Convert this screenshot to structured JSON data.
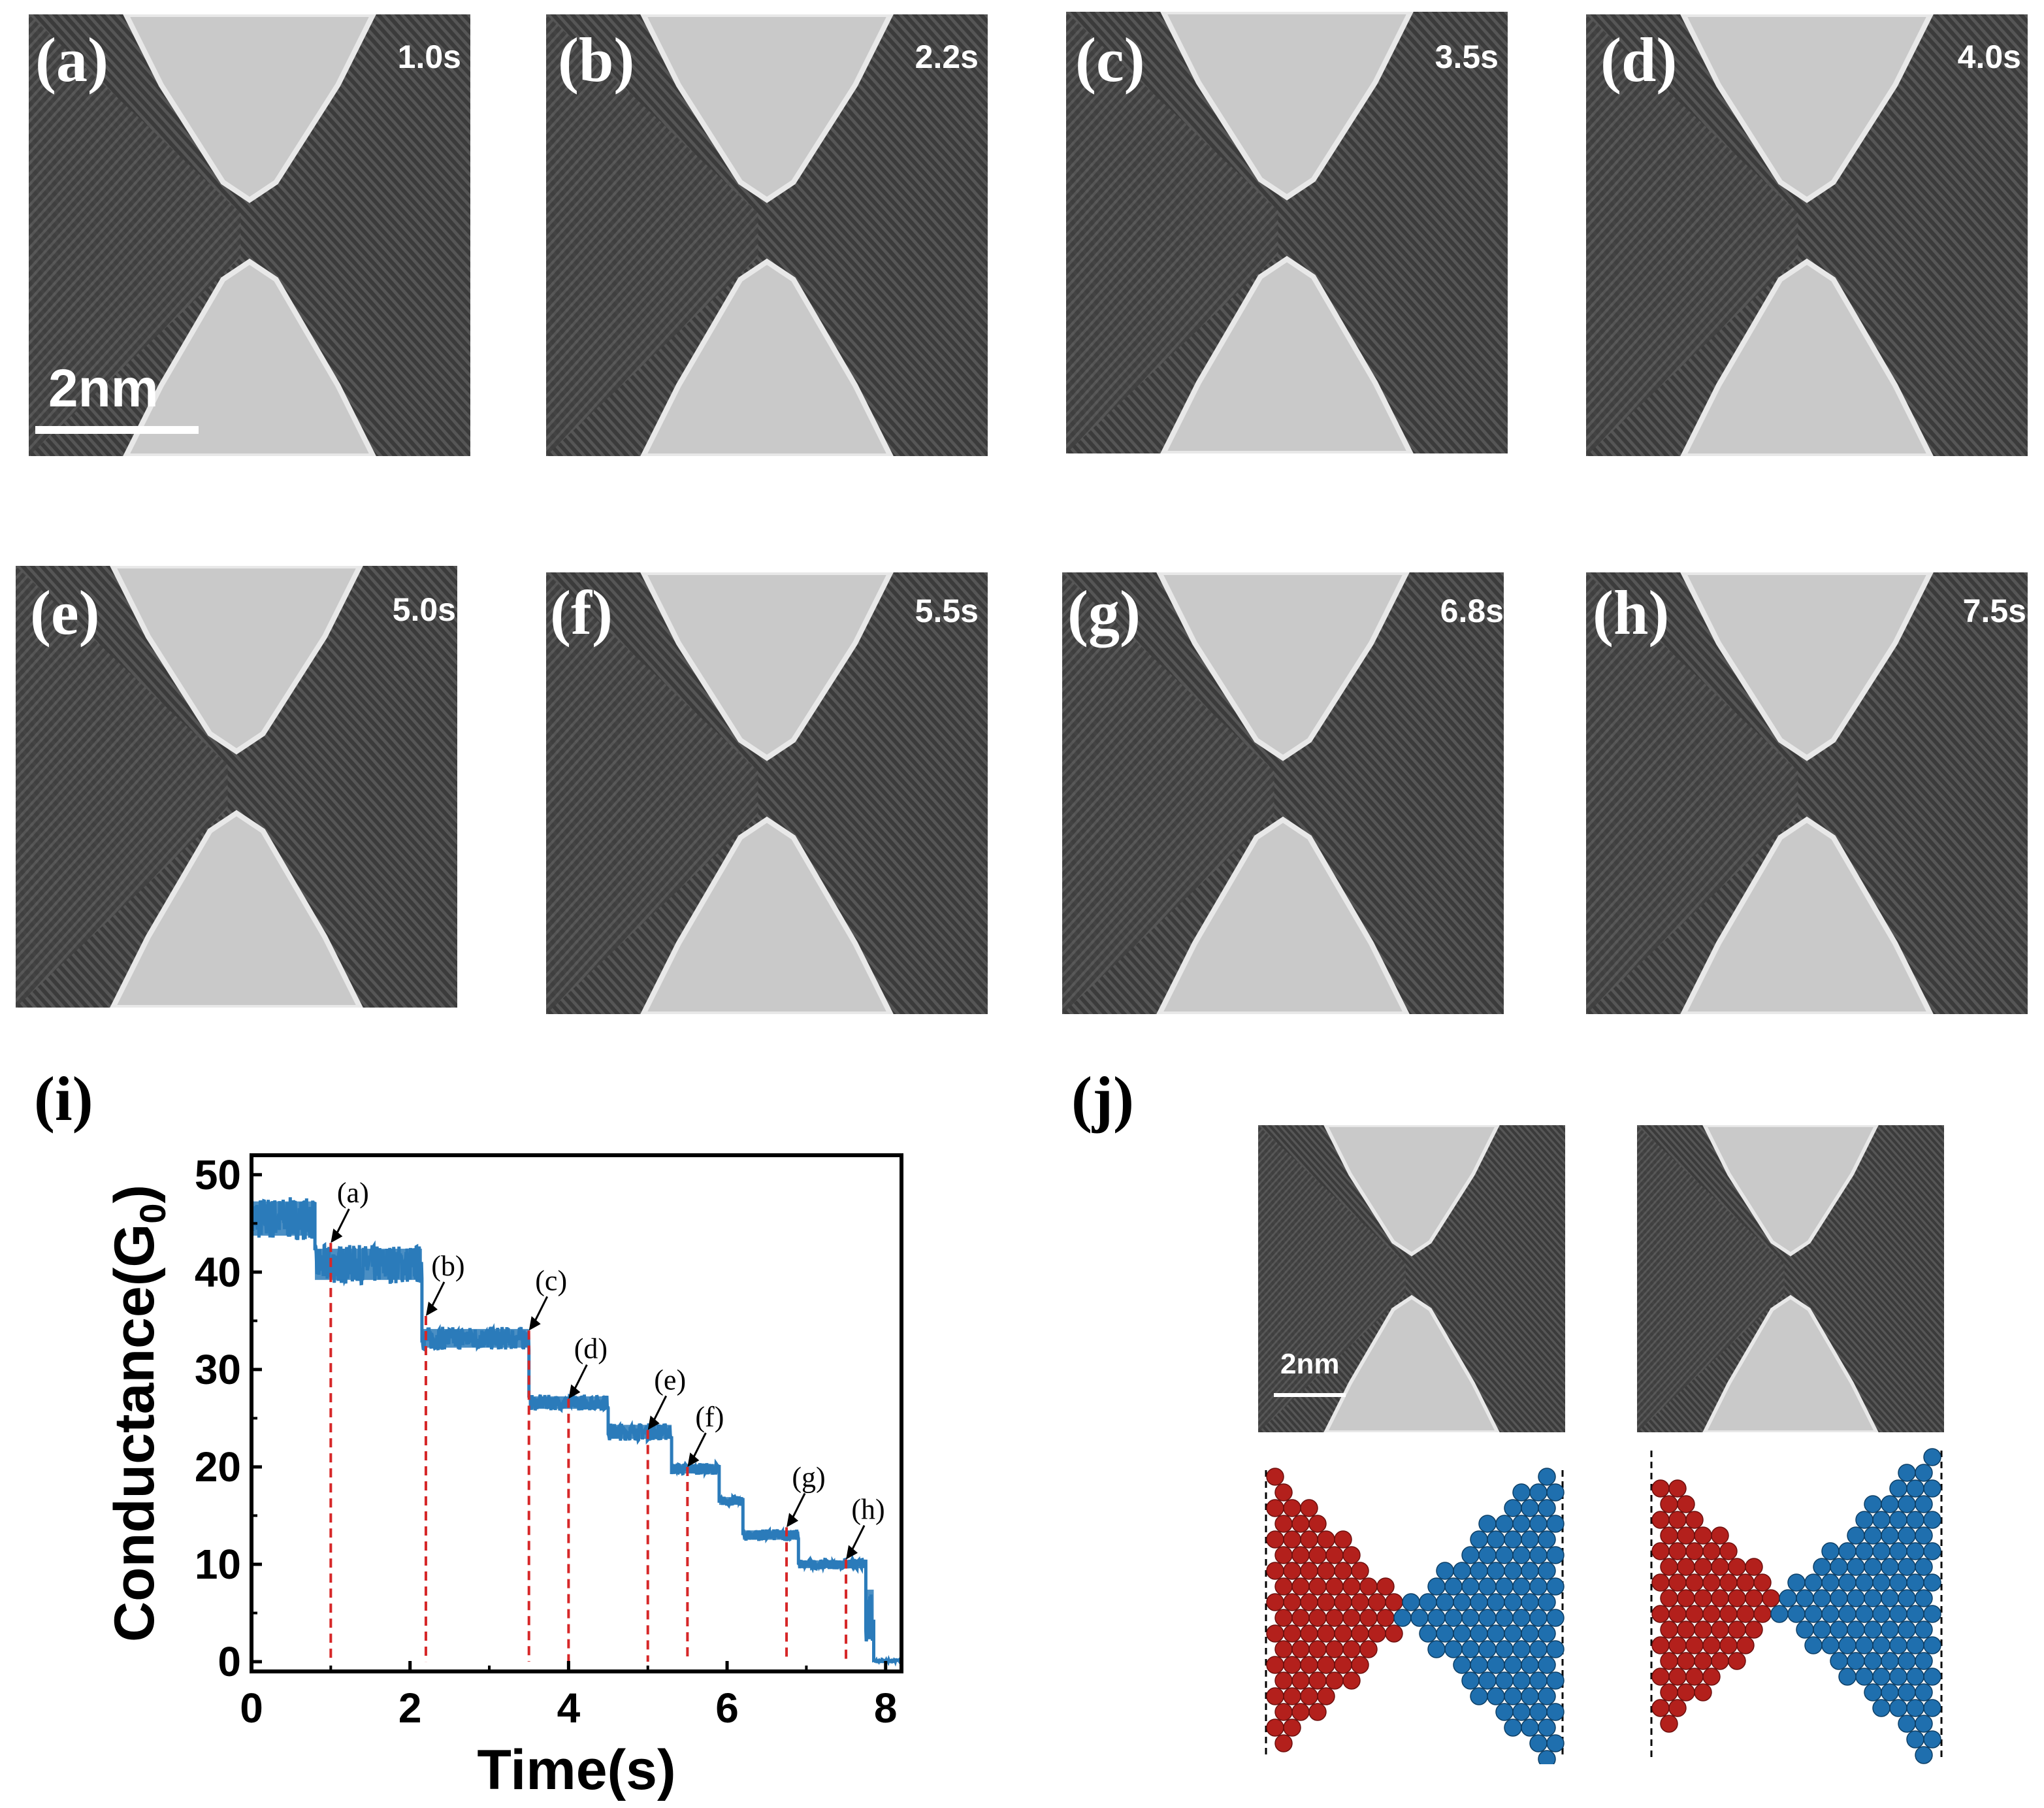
{
  "panels": [
    {
      "label": "(a)",
      "time": "1.0s"
    },
    {
      "label": "(b)",
      "time": "2.2s"
    },
    {
      "label": "(c)",
      "time": "3.5s"
    },
    {
      "label": "(d)",
      "time": "4.0s"
    },
    {
      "label": "(e)",
      "time": "5.0s"
    },
    {
      "label": "(f)",
      "time": "5.5s"
    },
    {
      "label": "(g)",
      "time": "6.8s"
    },
    {
      "label": "(h)",
      "time": "7.5s"
    }
  ],
  "scalebar_main": "2nm",
  "label_i": "(i)",
  "label_j": "(j)",
  "scalebar_j": "2nm",
  "colors": {
    "trace": "#2b7bba",
    "marker_line": "#d62728",
    "atom_red": "#b3201c",
    "atom_blue": "#1f6fae"
  },
  "chart_data": {
    "type": "line",
    "title": "",
    "xlabel": "Time(s)",
    "ylabel": "Conductance(G",
    "ylabel_sub": "0",
    "ylabel_suffix": ")",
    "xlim": [
      0,
      8.2
    ],
    "ylim": [
      -1,
      52
    ],
    "xticks": [
      0,
      2,
      4,
      6,
      8
    ],
    "yticks": [
      0,
      10,
      20,
      30,
      40,
      50
    ],
    "steps": [
      {
        "t0": 0.0,
        "t1": 0.8,
        "mean": 45.5,
        "noise": 2.2
      },
      {
        "t0": 0.8,
        "t1": 2.15,
        "mean": 40.8,
        "noise": 2.0
      },
      {
        "t0": 2.15,
        "t1": 3.5,
        "mean": 33.2,
        "noise": 1.2
      },
      {
        "t0": 3.5,
        "t1": 4.5,
        "mean": 26.6,
        "noise": 0.8
      },
      {
        "t0": 4.5,
        "t1": 5.3,
        "mean": 23.6,
        "noise": 0.9
      },
      {
        "t0": 5.3,
        "t1": 5.9,
        "mean": 19.8,
        "noise": 0.6
      },
      {
        "t0": 5.9,
        "t1": 6.2,
        "mean": 16.5,
        "noise": 0.5
      },
      {
        "t0": 6.2,
        "t1": 6.9,
        "mean": 13.0,
        "noise": 0.6
      },
      {
        "t0": 6.9,
        "t1": 7.75,
        "mean": 10.0,
        "noise": 0.5
      },
      {
        "t0": 7.75,
        "t1": 7.85,
        "mean": 5.0,
        "noise": 3.0
      },
      {
        "t0": 7.85,
        "t1": 8.2,
        "mean": 0.1,
        "noise": 0.1
      }
    ],
    "markers": [
      {
        "label": "(a)",
        "t": 1.0,
        "g": 43.0
      },
      {
        "label": "(b)",
        "t": 2.2,
        "g": 35.5
      },
      {
        "label": "(c)",
        "t": 3.5,
        "g": 34.0
      },
      {
        "label": "(d)",
        "t": 4.0,
        "g": 27.0
      },
      {
        "label": "(e)",
        "t": 5.0,
        "g": 23.8
      },
      {
        "label": "(f)",
        "t": 5.5,
        "g": 20.0
      },
      {
        "label": "(g)",
        "t": 6.75,
        "g": 13.8
      },
      {
        "label": "(h)",
        "t": 7.5,
        "g": 10.5
      }
    ]
  }
}
